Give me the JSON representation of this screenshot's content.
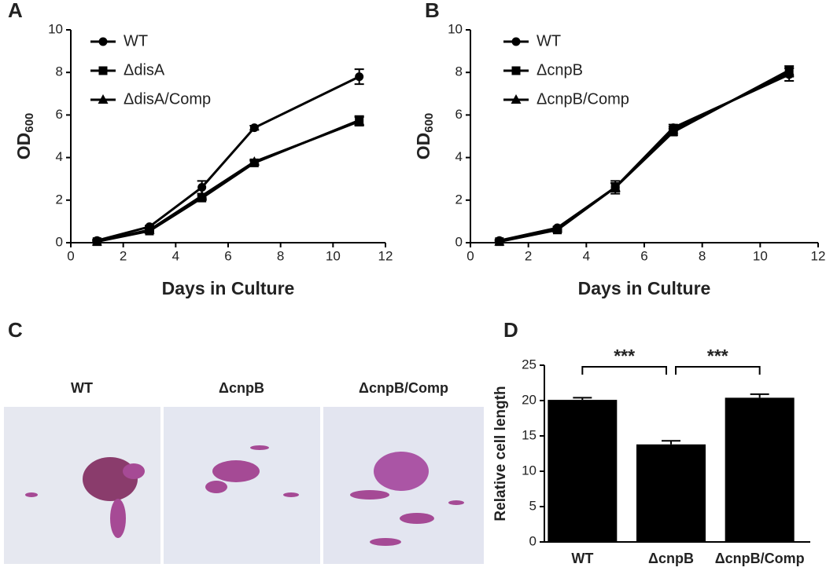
{
  "chart_data": [
    {
      "label": "A",
      "type": "line",
      "xlabel": "Days in Culture",
      "ylabel": "OD",
      "ylabel_sub": "600",
      "x": [
        1,
        3,
        5,
        7,
        11
      ],
      "xlim": [
        0,
        12
      ],
      "xticks": [
        0,
        2,
        4,
        6,
        8,
        10,
        12
      ],
      "ylim": [
        0,
        10
      ],
      "yticks": [
        0,
        2,
        4,
        6,
        8,
        10
      ],
      "series": [
        {
          "name": "WT",
          "color": "#000000",
          "marker": "circle",
          "values": [
            0.1,
            0.75,
            2.6,
            5.4,
            7.8
          ],
          "errors": [
            0.05,
            0.05,
            0.3,
            0.1,
            0.35
          ]
        },
        {
          "name": "ΔdisA",
          "color": "#000000",
          "marker": "square",
          "values": [
            0.05,
            0.55,
            2.1,
            3.75,
            5.75
          ],
          "errors": [
            0.05,
            0.05,
            0.1,
            0.1,
            0.2
          ]
        },
        {
          "name": "ΔdisA/Comp",
          "color": "#000000",
          "marker": "triangle",
          "values": [
            0.05,
            0.6,
            2.2,
            3.8,
            5.7
          ],
          "errors": [
            0.05,
            0.05,
            0.1,
            0.1,
            0.2
          ]
        }
      ]
    },
    {
      "label": "B",
      "type": "line",
      "xlabel": "Days in Culture",
      "ylabel": "OD",
      "ylabel_sub": "600",
      "x": [
        1,
        3,
        5,
        7,
        11
      ],
      "xlim": [
        0,
        12
      ],
      "xticks": [
        0,
        2,
        4,
        6,
        8,
        10,
        12
      ],
      "ylim": [
        0,
        10
      ],
      "yticks": [
        0,
        2,
        4,
        6,
        8,
        10
      ],
      "series": [
        {
          "name": "WT",
          "color": "#000000",
          "marker": "circle",
          "values": [
            0.1,
            0.7,
            2.6,
            5.4,
            7.9
          ],
          "errors": [
            0.05,
            0.05,
            0.3,
            0.15,
            0.3
          ]
        },
        {
          "name": "ΔcnpB",
          "color": "#000000",
          "marker": "square",
          "values": [
            0.05,
            0.6,
            2.6,
            5.2,
            8.1
          ],
          "errors": [
            0.05,
            0.05,
            0.2,
            0.15,
            0.2
          ]
        },
        {
          "name": "ΔcnpB/Comp",
          "color": "#000000",
          "marker": "triangle",
          "values": [
            0.05,
            0.65,
            2.6,
            5.3,
            8.0
          ],
          "errors": [
            0.05,
            0.05,
            0.2,
            0.15,
            0.2
          ]
        }
      ]
    },
    {
      "label": "D",
      "type": "bar",
      "ylabel": "Relative cell length",
      "categories": [
        "WT",
        "ΔcnpB",
        "ΔcnpB/Comp"
      ],
      "values": [
        20.1,
        13.8,
        20.4
      ],
      "errors": [
        0.3,
        0.5,
        0.5
      ],
      "color": "#000000",
      "ylim": [
        0,
        25
      ],
      "yticks": [
        0,
        5,
        10,
        15,
        20,
        25
      ],
      "annotations": [
        "***",
        "***"
      ]
    }
  ],
  "micrograph_panel": {
    "label": "C",
    "images": [
      "WT",
      "ΔcnpB",
      "ΔcnpB/Comp"
    ]
  }
}
